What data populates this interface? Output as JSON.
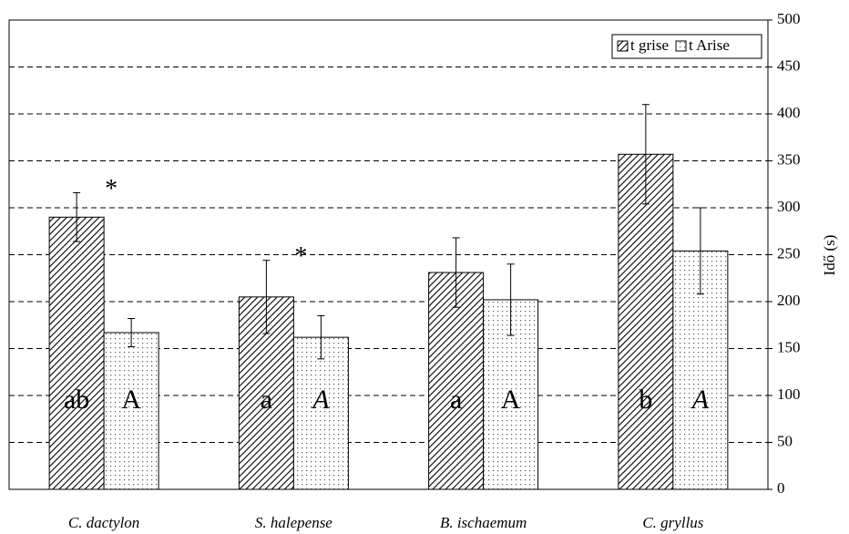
{
  "chart_data": {
    "type": "bar",
    "categories": [
      "C. dactylon",
      "S. halepense",
      "B. ischaemum",
      "C. gryllus"
    ],
    "series": [
      {
        "name": "t grise",
        "color": "#000000",
        "pattern": "hatch",
        "values": [
          290,
          205,
          231,
          357
        ],
        "errors": [
          26,
          39,
          37,
          53
        ],
        "letters": [
          "ab",
          "a",
          "a",
          "b"
        ],
        "letters_italic": [
          false,
          false,
          false,
          false
        ]
      },
      {
        "name": "t Arise",
        "color": "#000000",
        "pattern": "dots",
        "values": [
          167,
          162,
          202,
          254
        ],
        "errors": [
          15,
          23,
          38,
          46
        ],
        "letters": [
          "A",
          "A",
          "A",
          "A"
        ],
        "letters_italic": [
          false,
          true,
          false,
          true
        ]
      }
    ],
    "annotations": [
      {
        "text": "*",
        "category": 0
      },
      {
        "text": "*",
        "category": 1
      }
    ],
    "ylabel": "Idő (s)",
    "ylim": [
      0,
      500
    ],
    "yticks": [
      0,
      50,
      100,
      150,
      200,
      250,
      300,
      350,
      400,
      450,
      500
    ],
    "grid": true,
    "legend": "upper right",
    "axis_side": "right"
  }
}
